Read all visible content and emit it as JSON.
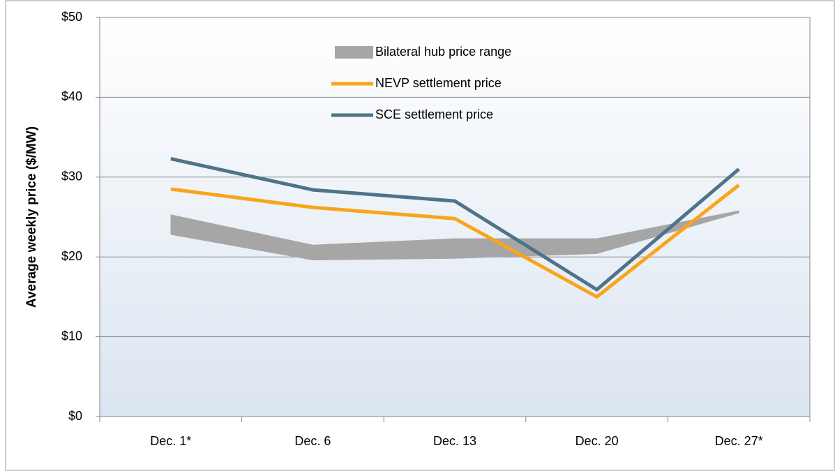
{
  "chart_data": {
    "type": "line",
    "y_label": "Average weekly price ($/MW)",
    "categories": [
      "Dec. 1*",
      "Dec. 6",
      "Dec. 13",
      "Dec. 20",
      "Dec. 27*"
    ],
    "ylim": [
      0,
      50
    ],
    "yticks": [
      {
        "value": 0,
        "label": "$0"
      },
      {
        "value": 10,
        "label": "$10"
      },
      {
        "value": 20,
        "label": "$20"
      },
      {
        "value": 30,
        "label": "$30"
      },
      {
        "value": 40,
        "label": "$40"
      },
      {
        "value": 50,
        "label": "$50"
      }
    ],
    "grid": true,
    "band": {
      "name": "Bilateral hub price range",
      "color": "#a6a6a6",
      "low": [
        22.8,
        19.6,
        19.8,
        20.4,
        25.5
      ],
      "high": [
        25.3,
        21.5,
        22.3,
        22.3,
        25.8
      ]
    },
    "series": [
      {
        "name": "NEVP settlement price",
        "color": "#f9a51a",
        "values": [
          28.5,
          26.2,
          24.8,
          15.0,
          29.0
        ]
      },
      {
        "name": "SCE settlement price",
        "color": "#4f7388",
        "values": [
          32.3,
          28.4,
          27.0,
          15.9,
          31.0
        ]
      }
    ]
  }
}
